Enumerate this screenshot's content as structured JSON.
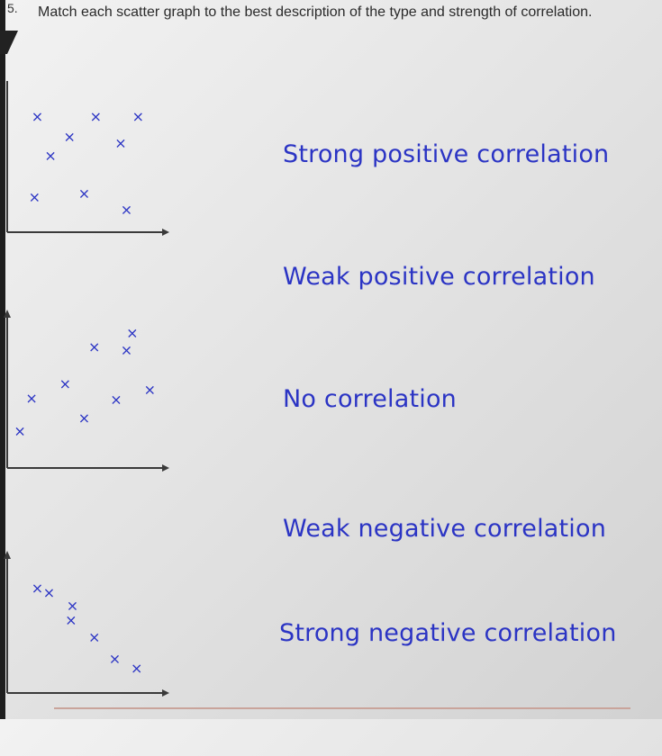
{
  "question": {
    "number": "5.",
    "text": "Match each scatter graph to the best description of the type and strength of correlation."
  },
  "colors": {
    "ink": "#2b34c4",
    "axis": "#3a3a3a"
  },
  "marker_glyph": "×",
  "graphs": [
    {
      "id": "graph-1",
      "points": [
        [
          0.17,
          0.86
        ],
        [
          0.57,
          0.86
        ],
        [
          0.86,
          0.86
        ],
        [
          0.39,
          0.7
        ],
        [
          0.74,
          0.65
        ],
        [
          0.26,
          0.55
        ],
        [
          0.15,
          0.22
        ],
        [
          0.49,
          0.25
        ],
        [
          0.78,
          0.12
        ]
      ]
    },
    {
      "id": "graph-2",
      "points": [
        [
          0.82,
          0.9
        ],
        [
          0.56,
          0.8
        ],
        [
          0.78,
          0.78
        ],
        [
          0.36,
          0.54
        ],
        [
          0.13,
          0.44
        ],
        [
          0.71,
          0.43
        ],
        [
          0.94,
          0.5
        ],
        [
          0.49,
          0.3
        ],
        [
          0.05,
          0.21
        ]
      ]
    },
    {
      "id": "graph-3",
      "points": [
        [
          0.17,
          0.84
        ],
        [
          0.25,
          0.8
        ],
        [
          0.41,
          0.69
        ],
        [
          0.4,
          0.57
        ],
        [
          0.56,
          0.43
        ],
        [
          0.7,
          0.25
        ],
        [
          0.85,
          0.17
        ]
      ]
    }
  ],
  "labels": [
    "Strong positive correlation",
    "Weak positive correlation",
    "No correlation",
    "Weak negative correlation",
    "Strong negative correlation"
  ]
}
